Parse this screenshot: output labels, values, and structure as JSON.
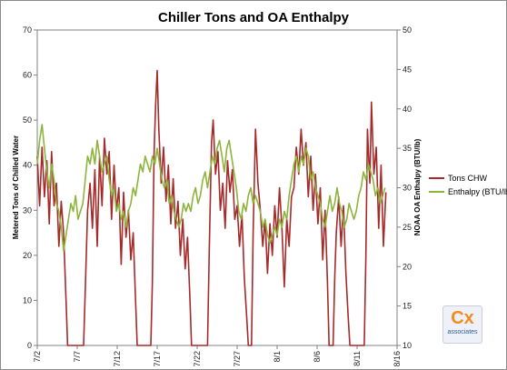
{
  "chart_data": {
    "type": "line",
    "title": "Chiller Tons and OA Enthalpy",
    "ylabel": "Metered Tons of Chilled Water",
    "y2label": "NOAA OA Enthalpy (BTU/lb)",
    "ylim": [
      0,
      70
    ],
    "y2lim": [
      10,
      50
    ],
    "yticks": [
      "0",
      "10",
      "20",
      "30",
      "40",
      "50",
      "60",
      "70"
    ],
    "y2ticks": [
      "10",
      "15",
      "20",
      "25",
      "30",
      "35",
      "40",
      "45",
      "50"
    ],
    "xticks": [
      "7/2",
      "7/7",
      "7/12",
      "7/17",
      "7/22",
      "7/27",
      "8/1",
      "8/6",
      "8/11",
      "8/16"
    ],
    "xlim_days": [
      0,
      45
    ],
    "grid": false,
    "legend_position": "right",
    "series": [
      {
        "name": "Tons CHW",
        "color": "#a52a2a",
        "axis": "left",
        "points": [
          [
            0.0,
            42
          ],
          [
            0.3,
            31
          ],
          [
            0.6,
            44
          ],
          [
            0.9,
            33
          ],
          [
            1.2,
            41
          ],
          [
            1.5,
            27
          ],
          [
            1.8,
            43
          ],
          [
            2.1,
            31
          ],
          [
            2.4,
            36
          ],
          [
            2.7,
            22
          ],
          [
            3.0,
            32
          ],
          [
            3.3,
            25
          ],
          [
            3.6,
            10
          ],
          [
            3.8,
            0
          ],
          [
            5.8,
            0
          ],
          [
            6.0,
            12
          ],
          [
            6.3,
            30
          ],
          [
            6.6,
            36
          ],
          [
            6.9,
            26
          ],
          [
            7.2,
            39
          ],
          [
            7.5,
            22
          ],
          [
            7.8,
            42
          ],
          [
            8.1,
            31
          ],
          [
            8.4,
            46
          ],
          [
            8.7,
            38
          ],
          [
            9.0,
            43
          ],
          [
            9.3,
            28
          ],
          [
            9.6,
            40
          ],
          [
            9.9,
            30
          ],
          [
            10.2,
            35
          ],
          [
            10.5,
            18
          ],
          [
            10.8,
            34
          ],
          [
            11.1,
            24
          ],
          [
            11.4,
            30
          ],
          [
            11.7,
            19
          ],
          [
            12.0,
            25
          ],
          [
            12.3,
            10
          ],
          [
            12.5,
            0
          ],
          [
            14.2,
            0
          ],
          [
            14.4,
            14
          ],
          [
            14.6,
            42
          ],
          [
            14.8,
            53
          ],
          [
            15.0,
            61
          ],
          [
            15.2,
            48
          ],
          [
            15.5,
            36
          ],
          [
            15.8,
            44
          ],
          [
            16.1,
            32
          ],
          [
            16.4,
            40
          ],
          [
            16.7,
            27
          ],
          [
            17.0,
            37
          ],
          [
            17.3,
            26
          ],
          [
            17.6,
            32
          ],
          [
            17.9,
            20
          ],
          [
            18.2,
            28
          ],
          [
            18.5,
            17
          ],
          [
            18.8,
            24
          ],
          [
            19.1,
            10
          ],
          [
            19.3,
            0
          ],
          [
            21.3,
            0
          ],
          [
            21.5,
            20
          ],
          [
            21.8,
            45
          ],
          [
            22.0,
            50
          ],
          [
            22.3,
            38
          ],
          [
            22.6,
            43
          ],
          [
            22.9,
            30
          ],
          [
            23.2,
            36
          ],
          [
            23.5,
            26
          ],
          [
            23.8,
            41
          ],
          [
            24.1,
            34
          ],
          [
            24.4,
            39
          ],
          [
            24.7,
            28
          ],
          [
            25.0,
            31
          ],
          [
            25.3,
            22
          ],
          [
            25.6,
            29
          ],
          [
            25.9,
            15
          ],
          [
            26.2,
            6
          ],
          [
            26.4,
            0
          ],
          [
            26.8,
            0
          ],
          [
            27.0,
            25
          ],
          [
            27.3,
            48
          ],
          [
            27.6,
            36
          ],
          [
            27.9,
            30
          ],
          [
            28.2,
            22
          ],
          [
            28.5,
            28
          ],
          [
            28.8,
            16
          ],
          [
            29.1,
            27
          ],
          [
            29.4,
            20
          ],
          [
            29.7,
            31
          ],
          [
            30.0,
            24
          ],
          [
            30.3,
            35
          ],
          [
            30.6,
            26
          ],
          [
            30.9,
            13
          ],
          [
            31.2,
            28
          ],
          [
            31.5,
            22
          ],
          [
            31.8,
            33
          ],
          [
            32.1,
            35
          ],
          [
            32.4,
            44
          ],
          [
            32.7,
            38
          ],
          [
            33.0,
            48
          ],
          [
            33.3,
            40
          ],
          [
            33.6,
            45
          ],
          [
            33.9,
            33
          ],
          [
            34.2,
            42
          ],
          [
            34.5,
            30
          ],
          [
            34.8,
            38
          ],
          [
            35.1,
            27
          ],
          [
            35.4,
            35
          ],
          [
            35.7,
            19
          ],
          [
            36.0,
            30
          ],
          [
            36.3,
            14
          ],
          [
            36.5,
            0
          ],
          [
            37.0,
            0
          ],
          [
            37.2,
            15
          ],
          [
            37.4,
            25
          ],
          [
            37.7,
            33
          ],
          [
            38.0,
            22
          ],
          [
            38.3,
            31
          ],
          [
            38.6,
            16
          ],
          [
            38.9,
            6
          ],
          [
            39.1,
            0
          ],
          [
            40.9,
            0
          ],
          [
            41.1,
            20
          ],
          [
            41.3,
            48
          ],
          [
            41.6,
            36
          ],
          [
            41.8,
            54
          ],
          [
            42.1,
            38
          ],
          [
            42.4,
            44
          ],
          [
            42.7,
            26
          ],
          [
            43.0,
            40
          ],
          [
            43.3,
            22
          ],
          [
            43.6,
            34
          ]
        ]
      },
      {
        "name": "Enthalpy (BTU/lb)",
        "color": "#8db43c",
        "axis": "right",
        "points": [
          [
            0.0,
            33
          ],
          [
            0.3,
            36
          ],
          [
            0.6,
            38
          ],
          [
            0.9,
            35
          ],
          [
            1.2,
            32
          ],
          [
            1.5,
            30
          ],
          [
            1.8,
            33
          ],
          [
            2.1,
            31
          ],
          [
            2.4,
            28
          ],
          [
            2.7,
            27
          ],
          [
            3.0,
            25
          ],
          [
            3.3,
            22
          ],
          [
            3.6,
            24
          ],
          [
            3.9,
            26
          ],
          [
            4.2,
            28
          ],
          [
            4.5,
            27
          ],
          [
            4.8,
            29
          ],
          [
            5.1,
            26
          ],
          [
            5.4,
            27
          ],
          [
            5.7,
            28
          ],
          [
            6.0,
            31
          ],
          [
            6.3,
            34
          ],
          [
            6.6,
            33
          ],
          [
            6.9,
            35
          ],
          [
            7.2,
            33
          ],
          [
            7.5,
            36
          ],
          [
            7.8,
            34
          ],
          [
            8.1,
            32
          ],
          [
            8.4,
            33
          ],
          [
            8.7,
            34
          ],
          [
            9.0,
            31
          ],
          [
            9.3,
            29
          ],
          [
            9.6,
            30
          ],
          [
            9.9,
            27
          ],
          [
            10.2,
            28
          ],
          [
            10.5,
            26
          ],
          [
            10.8,
            27
          ],
          [
            11.1,
            25
          ],
          [
            11.4,
            27
          ],
          [
            11.7,
            28
          ],
          [
            12.0,
            30
          ],
          [
            12.3,
            29
          ],
          [
            12.6,
            31
          ],
          [
            12.9,
            33
          ],
          [
            13.2,
            32
          ],
          [
            13.5,
            34
          ],
          [
            13.8,
            33
          ],
          [
            14.1,
            32
          ],
          [
            14.4,
            34
          ],
          [
            14.7,
            33
          ],
          [
            15.0,
            35
          ],
          [
            15.3,
            33
          ],
          [
            15.6,
            31
          ],
          [
            15.9,
            30
          ],
          [
            16.2,
            31
          ],
          [
            16.5,
            28
          ],
          [
            16.8,
            29
          ],
          [
            17.1,
            27
          ],
          [
            17.4,
            26
          ],
          [
            17.7,
            25
          ],
          [
            18.0,
            26
          ],
          [
            18.3,
            28
          ],
          [
            18.6,
            27
          ],
          [
            18.9,
            28
          ],
          [
            19.2,
            27
          ],
          [
            19.5,
            29
          ],
          [
            19.8,
            30
          ],
          [
            20.1,
            28
          ],
          [
            20.4,
            29
          ],
          [
            20.7,
            31
          ],
          [
            21.0,
            32
          ],
          [
            21.3,
            30
          ],
          [
            21.6,
            32
          ],
          [
            21.9,
            34
          ],
          [
            22.2,
            33
          ],
          [
            22.5,
            35
          ],
          [
            22.8,
            36
          ],
          [
            23.1,
            34
          ],
          [
            23.4,
            32
          ],
          [
            23.7,
            35
          ],
          [
            24.0,
            36
          ],
          [
            24.3,
            34
          ],
          [
            24.6,
            32
          ],
          [
            24.9,
            30
          ],
          [
            25.2,
            27
          ],
          [
            25.5,
            26
          ],
          [
            25.8,
            28
          ],
          [
            26.1,
            27
          ],
          [
            26.4,
            29
          ],
          [
            26.7,
            30
          ],
          [
            27.0,
            28
          ],
          [
            27.3,
            29
          ],
          [
            27.6,
            28
          ],
          [
            27.9,
            27
          ],
          [
            28.2,
            25
          ],
          [
            28.5,
            26
          ],
          [
            28.8,
            24
          ],
          [
            29.1,
            23
          ],
          [
            29.4,
            24
          ],
          [
            29.7,
            25
          ],
          [
            30.0,
            24
          ],
          [
            30.3,
            26
          ],
          [
            30.6,
            25
          ],
          [
            30.9,
            27
          ],
          [
            31.2,
            26
          ],
          [
            31.5,
            29
          ],
          [
            31.8,
            31
          ],
          [
            32.1,
            33
          ],
          [
            32.4,
            34
          ],
          [
            32.7,
            32
          ],
          [
            33.0,
            34
          ],
          [
            33.3,
            33
          ],
          [
            33.6,
            35
          ],
          [
            33.9,
            34
          ],
          [
            34.2,
            31
          ],
          [
            34.5,
            32
          ],
          [
            34.8,
            30
          ],
          [
            35.1,
            29
          ],
          [
            35.4,
            28
          ],
          [
            35.7,
            26
          ],
          [
            36.0,
            25
          ],
          [
            36.3,
            27
          ],
          [
            36.6,
            29
          ],
          [
            36.9,
            27
          ],
          [
            37.2,
            28
          ],
          [
            37.5,
            30
          ],
          [
            37.8,
            28
          ],
          [
            38.1,
            27
          ],
          [
            38.4,
            25
          ],
          [
            38.7,
            26
          ],
          [
            39.0,
            28
          ],
          [
            39.3,
            27
          ],
          [
            39.6,
            26
          ],
          [
            39.9,
            27
          ],
          [
            40.2,
            29
          ],
          [
            40.5,
            30
          ],
          [
            40.8,
            32
          ],
          [
            41.1,
            31
          ],
          [
            41.4,
            33
          ],
          [
            41.7,
            32
          ],
          [
            42.0,
            31
          ],
          [
            42.3,
            29
          ],
          [
            42.6,
            30
          ],
          [
            42.9,
            28
          ],
          [
            43.2,
            29
          ],
          [
            43.5,
            30
          ]
        ]
      }
    ]
  },
  "logo": {
    "main": "Cx",
    "sub": "associates"
  }
}
